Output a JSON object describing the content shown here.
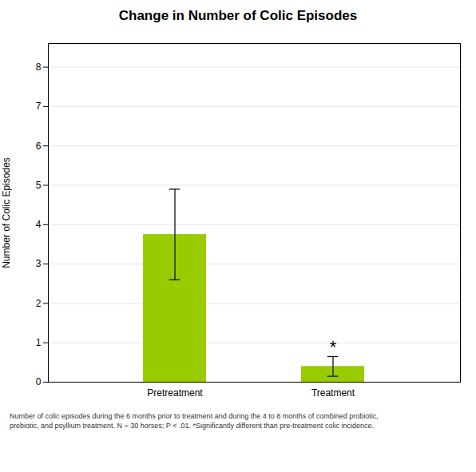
{
  "chart_data": {
    "type": "bar",
    "title": "Change in Number of Colic Episodes",
    "ylabel": "Number of Colic Episodes",
    "categories": [
      "Pretreatment",
      "Treatment"
    ],
    "values": [
      3.75,
      0.4
    ],
    "errors": [
      1.15,
      0.25
    ],
    "color": "#99cc00",
    "ylim": [
      0,
      8.6
    ],
    "yticks": [
      0,
      1,
      2,
      3,
      4,
      5,
      6,
      7,
      8
    ],
    "grid": true,
    "annotations": [
      {
        "text": "*",
        "category": "Treatment"
      }
    ],
    "caption": "Number of colic episodes during the 6 months prior to treatment and during the 4 to 8 months of combined probiotic,\nprebiotic, and psyllium treatment. N = 30 horses; P < .01. *Significantly different than pre-treatment colic incidence."
  }
}
